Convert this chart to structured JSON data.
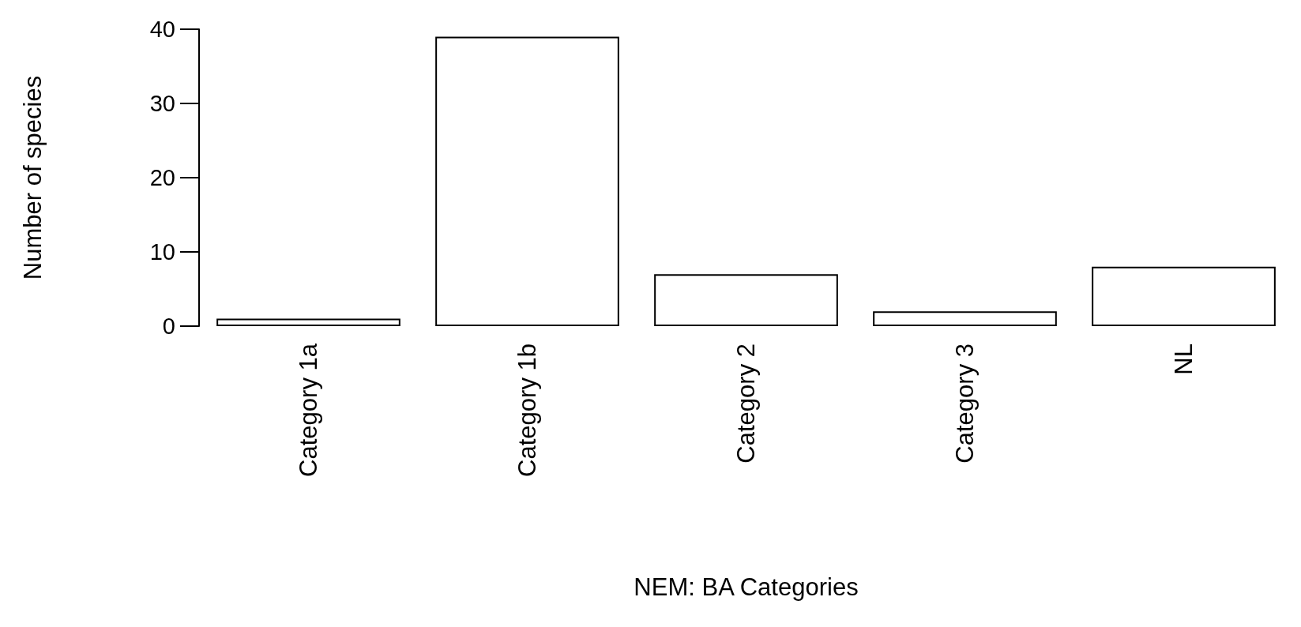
{
  "chart_data": {
    "type": "bar",
    "xlabel": "NEM: BA Categories",
    "ylabel": "Number of species",
    "categories": [
      "Category 1a",
      "Category 1b",
      "Category 2",
      "Category 3",
      "NL"
    ],
    "values": [
      1,
      39,
      7,
      2,
      8
    ],
    "color": "#ffffff",
    "ylim": [
      0,
      40
    ],
    "yticks": [
      0,
      10,
      20,
      30,
      40
    ],
    "grid": false
  }
}
